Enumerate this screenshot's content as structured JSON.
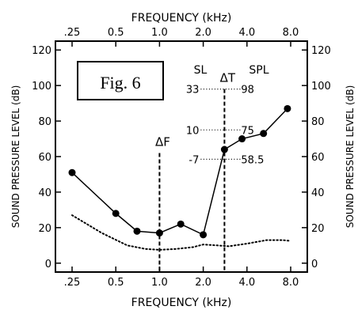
{
  "figure_label": "Fig. 6",
  "chart_data": {
    "type": "line",
    "xlabel_top": "FREQUENCY (kHz)",
    "xlabel_bottom": "FREQUENCY (kHz)",
    "ylabel_left": "SOUND PRESSURE LEVEL (dB)",
    "ylabel_right": "SOUND PRESSURE LEVEL (dB)",
    "x_scale": "log",
    "x_ticks": [
      0.25,
      0.5,
      1.0,
      2.0,
      4.0,
      8.0
    ],
    "x_tick_labels": [
      ".25",
      "0.5",
      "1.0",
      "2.0",
      "4.0",
      "8.0"
    ],
    "y_ticks": [
      0,
      20,
      40,
      60,
      80,
      100,
      120
    ],
    "ylim": [
      -5,
      125
    ],
    "grid": false,
    "series": [
      {
        "style": "solid-with-markers",
        "x": [
          0.25,
          0.5,
          0.7,
          1.0,
          1.4,
          2.0,
          2.8,
          3.7,
          5.2,
          7.6
        ],
        "y": [
          51,
          28,
          18,
          17,
          22,
          16,
          64,
          70,
          73,
          87
        ]
      },
      {
        "style": "dotted",
        "x": [
          0.25,
          0.4,
          0.6,
          0.8,
          1.0,
          1.3,
          1.7,
          2.0,
          2.5,
          3.0,
          4.0,
          5.5,
          7.0,
          8.0
        ],
        "y": [
          27,
          17,
          10,
          8,
          7.5,
          8,
          9,
          10.5,
          10,
          9.5,
          11,
          13,
          13,
          12.5
        ]
      }
    ],
    "markers": [
      {
        "label": "ΔF",
        "x": 1.0
      },
      {
        "label": "ΔT",
        "x": 2.8
      }
    ],
    "annotations": {
      "sl_header": "SL",
      "spl_header": "SPL",
      "rows": [
        {
          "sl": "33",
          "spl": "98",
          "y": 98
        },
        {
          "sl": "10",
          "spl": "75",
          "y": 75
        },
        {
          "sl": "-7",
          "spl": "58.5",
          "y": 58.5
        }
      ]
    }
  }
}
